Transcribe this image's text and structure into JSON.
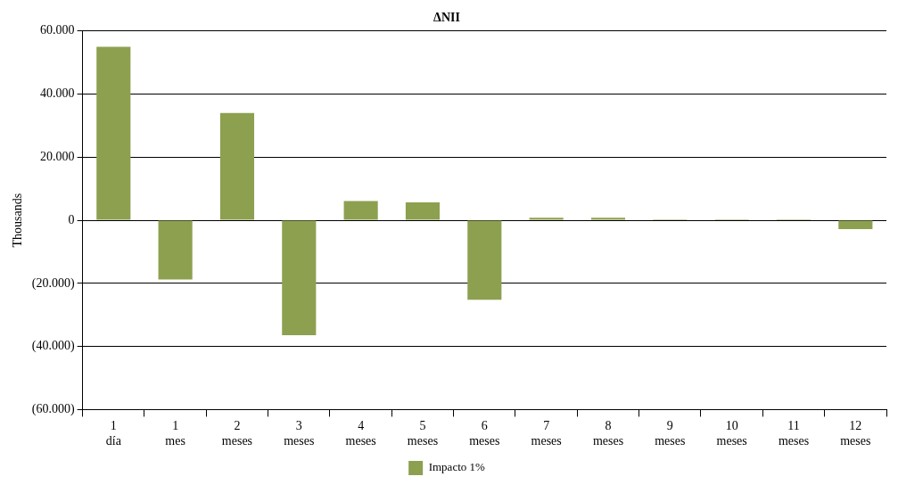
{
  "chart_data": {
    "type": "bar",
    "title": "ΔNII",
    "ylabel": "Thousands",
    "categories": [
      "1 día",
      "1 mes",
      "2 meses",
      "3 meses",
      "4 meses",
      "5 meses",
      "6 meses",
      "7 meses",
      "8 meses",
      "9 meses",
      "10 meses",
      "11 meses",
      "12 meses"
    ],
    "series": [
      {
        "name": "Impacto 1%",
        "color": "#8da050",
        "values": [
          55000,
          -18800,
          34000,
          -36400,
          6100,
          5700,
          -25200,
          800,
          800,
          300,
          300,
          300,
          -2800
        ]
      }
    ],
    "ylim": [
      -60000,
      60000
    ],
    "yticks": [
      {
        "value": -60000,
        "label": "(60.000)"
      },
      {
        "value": -40000,
        "label": "(40.000)"
      },
      {
        "value": -20000,
        "label": "(20.000)"
      },
      {
        "value": 0,
        "label": "0"
      },
      {
        "value": 20000,
        "label": "20.000"
      },
      {
        "value": 40000,
        "label": "40.000"
      },
      {
        "value": 60000,
        "label": "60.000"
      }
    ],
    "grid": "y",
    "legend": "bottom"
  }
}
